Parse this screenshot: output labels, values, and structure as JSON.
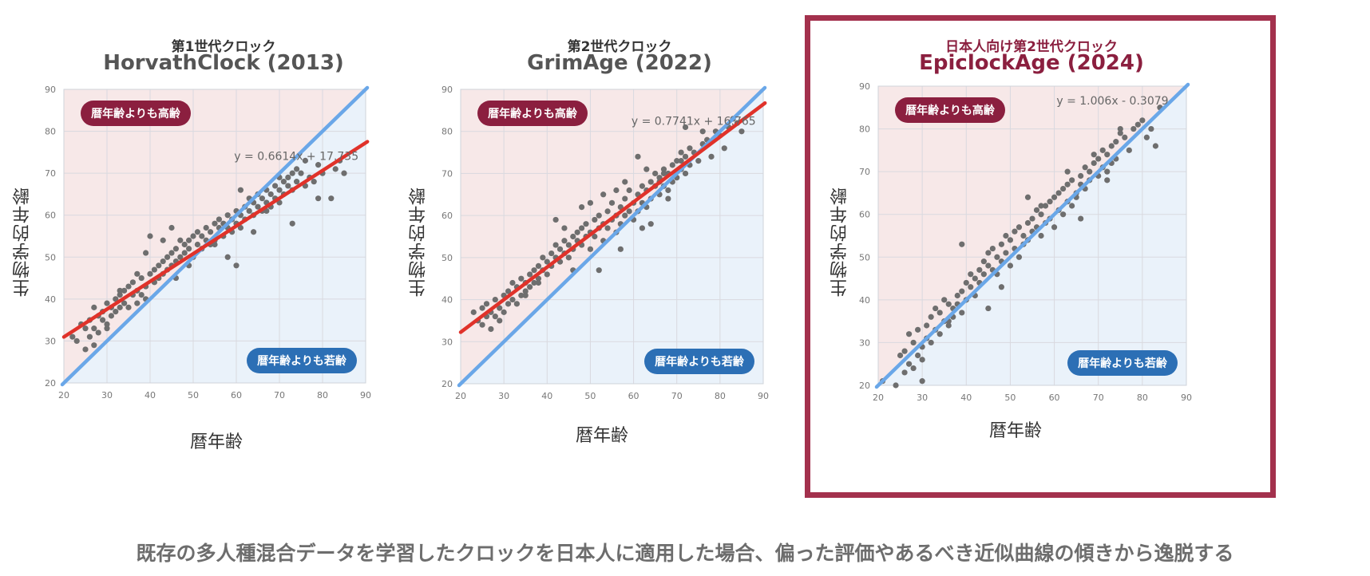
{
  "footer": "既存の多人種混合データを学習したクロックを日本人に適用した場合、偏った評価やあるべき近似曲線の傾きから逸脱する",
  "colors": {
    "older_region": "#f7e8e8",
    "younger_region": "#eaf2fa",
    "identity_line": "#6aa7e8",
    "fit_line": "#e0322a",
    "points": "#6e6e6e",
    "older_badge": "#8b1f3f",
    "younger_badge": "#2c6fb5",
    "highlight_frame": "#a3314d"
  },
  "chart_data": [
    {
      "type": "scatter",
      "subtitle": "第1世代クロック",
      "title": "HorvathClock (2013)",
      "xlabel": "暦年齢",
      "ylabel": "生物学的年齢",
      "xlim": [
        20,
        90
      ],
      "ylim": [
        20,
        90
      ],
      "ticks": [
        20,
        30,
        40,
        50,
        60,
        70,
        80,
        90
      ],
      "grid": true,
      "older_label": "暦年齢よりも高齢",
      "younger_label": "暦年齢よりも若齢",
      "fit": {
        "slope": 0.6614,
        "intercept": 17.735,
        "label": "y = 0.6614x + 17.735",
        "show_line": true
      },
      "identity_line": true,
      "points": {
        "x": [
          22,
          23,
          24,
          25,
          25,
          26,
          26,
          27,
          27,
          28,
          28,
          29,
          29,
          30,
          30,
          31,
          31,
          32,
          32,
          33,
          33,
          34,
          34,
          35,
          35,
          36,
          36,
          37,
          37,
          38,
          38,
          39,
          39,
          40,
          40,
          41,
          41,
          42,
          42,
          43,
          43,
          44,
          44,
          45,
          45,
          46,
          46,
          47,
          47,
          48,
          48,
          49,
          49,
          50,
          50,
          51,
          51,
          52,
          52,
          53,
          53,
          54,
          54,
          55,
          55,
          56,
          56,
          57,
          57,
          58,
          58,
          59,
          59,
          60,
          60,
          61,
          61,
          62,
          62,
          63,
          63,
          64,
          64,
          65,
          65,
          66,
          66,
          67,
          67,
          68,
          68,
          69,
          69,
          70,
          70,
          71,
          71,
          72,
          72,
          73,
          73,
          74,
          74,
          75,
          76,
          77,
          78,
          79,
          80,
          82,
          83,
          84,
          85,
          27,
          33,
          39,
          45,
          37,
          43,
          49,
          55,
          61,
          67,
          73,
          79,
          60,
          30,
          46,
          58,
          64,
          70,
          76
        ],
        "y": [
          31,
          30,
          34,
          28,
          33,
          35,
          31,
          33,
          38,
          36,
          32,
          37,
          35,
          39,
          34,
          38,
          36,
          40,
          37,
          41,
          38,
          42,
          39,
          43,
          38,
          41,
          44,
          42,
          39,
          45,
          41,
          43,
          40,
          46,
          55,
          44,
          47,
          48,
          45,
          49,
          46,
          50,
          47,
          51,
          48,
          52,
          49,
          50,
          54,
          53,
          51,
          54,
          52,
          55,
          50,
          56,
          53,
          55,
          52,
          57,
          54,
          56,
          53,
          58,
          54,
          57,
          59,
          55,
          58,
          57,
          60,
          56,
          59,
          61,
          58,
          60,
          57,
          62,
          59,
          61,
          64,
          60,
          63,
          62,
          65,
          61,
          64,
          63,
          66,
          62,
          65,
          64,
          67,
          66,
          63,
          68,
          65,
          69,
          67,
          66,
          70,
          68,
          71,
          70,
          67,
          69,
          68,
          72,
          70,
          64,
          71,
          73,
          70,
          29,
          42,
          51,
          57,
          46,
          54,
          48,
          53,
          66,
          61,
          58,
          64,
          48,
          33,
          45,
          50,
          56,
          69,
          73
        ]
      }
    },
    {
      "type": "scatter",
      "subtitle": "第2世代クロック",
      "title": "GrimAge (2022)",
      "xlabel": "暦年齢",
      "ylabel": "生物学的年齢",
      "xlim": [
        20,
        90
      ],
      "ylim": [
        20,
        90
      ],
      "ticks": [
        20,
        30,
        40,
        50,
        60,
        70,
        80,
        90
      ],
      "grid": true,
      "older_label": "暦年齢よりも高齢",
      "younger_label": "暦年齢よりも若齢",
      "fit": {
        "slope": 0.7741,
        "intercept": 16.765,
        "label": "y = 0.7741x + 16.765",
        "show_line": true
      },
      "identity_line": true,
      "points": {
        "x": [
          23,
          24,
          25,
          25,
          26,
          26,
          27,
          27,
          28,
          28,
          29,
          29,
          30,
          30,
          31,
          31,
          32,
          32,
          33,
          33,
          34,
          34,
          35,
          35,
          36,
          36,
          37,
          37,
          38,
          38,
          39,
          39,
          40,
          40,
          41,
          41,
          42,
          42,
          43,
          43,
          44,
          44,
          45,
          45,
          46,
          46,
          47,
          47,
          48,
          48,
          49,
          49,
          50,
          50,
          51,
          51,
          52,
          52,
          53,
          53,
          54,
          54,
          55,
          55,
          56,
          56,
          57,
          57,
          58,
          58,
          59,
          59,
          60,
          60,
          61,
          61,
          62,
          62,
          63,
          63,
          64,
          64,
          65,
          65,
          66,
          66,
          67,
          67,
          68,
          68,
          69,
          69,
          70,
          70,
          71,
          71,
          72,
          72,
          73,
          73,
          74,
          75,
          76,
          77,
          78,
          79,
          80,
          81,
          82,
          83,
          84,
          85,
          42,
          48,
          53,
          58,
          63,
          68,
          52,
          57,
          62,
          67,
          72,
          38,
          44,
          50,
          56,
          61,
          66,
          71,
          76,
          35,
          46,
          64
        ],
        "y": [
          37,
          35,
          38,
          34,
          36,
          39,
          37,
          33,
          40,
          36,
          38,
          35,
          41,
          37,
          42,
          39,
          40,
          44,
          43,
          39,
          45,
          41,
          44,
          42,
          46,
          43,
          47,
          44,
          48,
          45,
          47,
          50,
          49,
          46,
          51,
          48,
          50,
          53,
          52,
          49,
          51,
          54,
          53,
          50,
          55,
          52,
          54,
          56,
          57,
          53,
          55,
          58,
          56,
          52,
          59,
          55,
          57,
          60,
          58,
          54,
          61,
          57,
          59,
          63,
          60,
          56,
          62,
          58,
          64,
          60,
          61,
          66,
          63,
          59,
          65,
          61,
          67,
          63,
          66,
          62,
          68,
          64,
          67,
          70,
          65,
          69,
          71,
          67,
          70,
          66,
          72,
          68,
          73,
          69,
          71,
          75,
          74,
          70,
          72,
          76,
          75,
          73,
          77,
          78,
          74,
          80,
          79,
          76,
          81,
          83,
          82,
          80,
          59,
          62,
          65,
          68,
          71,
          64,
          47,
          52,
          57,
          70,
          81,
          44,
          57,
          63,
          66,
          74,
          68,
          73,
          80,
          41,
          47,
          58
        ]
      }
    },
    {
      "type": "scatter",
      "subtitle": "日本人向け第2世代クロック",
      "title": "EpiclockAge (2024)",
      "xlabel": "暦年齢",
      "ylabel": "生物学的年齢",
      "xlim": [
        20,
        90
      ],
      "ylim": [
        20,
        90
      ],
      "ticks": [
        20,
        30,
        40,
        50,
        60,
        70,
        80,
        90
      ],
      "grid": true,
      "highlighted": true,
      "older_label": "暦年齢よりも高齢",
      "younger_label": "暦年齢よりも若齢",
      "fit": {
        "slope": 1.006,
        "intercept": -0.3079,
        "label": "y = 1.006x - 0.3079",
        "show_line": false
      },
      "identity_line": true,
      "points": {
        "x": [
          21,
          24,
          25,
          26,
          26,
          27,
          27,
          28,
          28,
          29,
          29,
          30,
          30,
          31,
          31,
          32,
          32,
          33,
          33,
          34,
          34,
          35,
          35,
          36,
          36,
          37,
          37,
          38,
          38,
          39,
          39,
          40,
          40,
          41,
          41,
          42,
          42,
          43,
          43,
          44,
          44,
          45,
          45,
          46,
          46,
          47,
          47,
          48,
          48,
          49,
          49,
          50,
          50,
          51,
          51,
          52,
          52,
          53,
          53,
          54,
          54,
          55,
          55,
          56,
          56,
          57,
          57,
          58,
          58,
          59,
          59,
          60,
          60,
          61,
          61,
          62,
          62,
          63,
          63,
          64,
          64,
          65,
          65,
          66,
          66,
          67,
          67,
          68,
          68,
          69,
          69,
          70,
          70,
          71,
          71,
          72,
          72,
          73,
          73,
          74,
          74,
          75,
          76,
          77,
          78,
          79,
          80,
          82,
          83,
          84,
          30,
          39,
          48,
          57,
          66,
          75,
          36,
          45,
          54,
          63,
          72,
          81
        ],
        "y": [
          21,
          20,
          27,
          23,
          28,
          25,
          32,
          24,
          30,
          27,
          33,
          21,
          29,
          31,
          34,
          30,
          36,
          33,
          38,
          32,
          37,
          35,
          40,
          34,
          39,
          38,
          36,
          41,
          39,
          42,
          37,
          44,
          40,
          43,
          46,
          41,
          45,
          47,
          44,
          49,
          46,
          48,
          51,
          47,
          52,
          50,
          46,
          53,
          49,
          51,
          55,
          48,
          54,
          52,
          56,
          50,
          57,
          55,
          53,
          58,
          54,
          59,
          56,
          57,
          61,
          55,
          60,
          62,
          58,
          59,
          63,
          57,
          64,
          61,
          65,
          60,
          66,
          63,
          67,
          62,
          68,
          65,
          64,
          69,
          67,
          71,
          66,
          70,
          68,
          72,
          74,
          69,
          73,
          71,
          75,
          70,
          74,
          76,
          72,
          73,
          77,
          79,
          78,
          75,
          80,
          81,
          82,
          80,
          76,
          85,
          26,
          53,
          43,
          62,
          59,
          80,
          35,
          38,
          64,
          70,
          68,
          78
        ]
      }
    }
  ]
}
